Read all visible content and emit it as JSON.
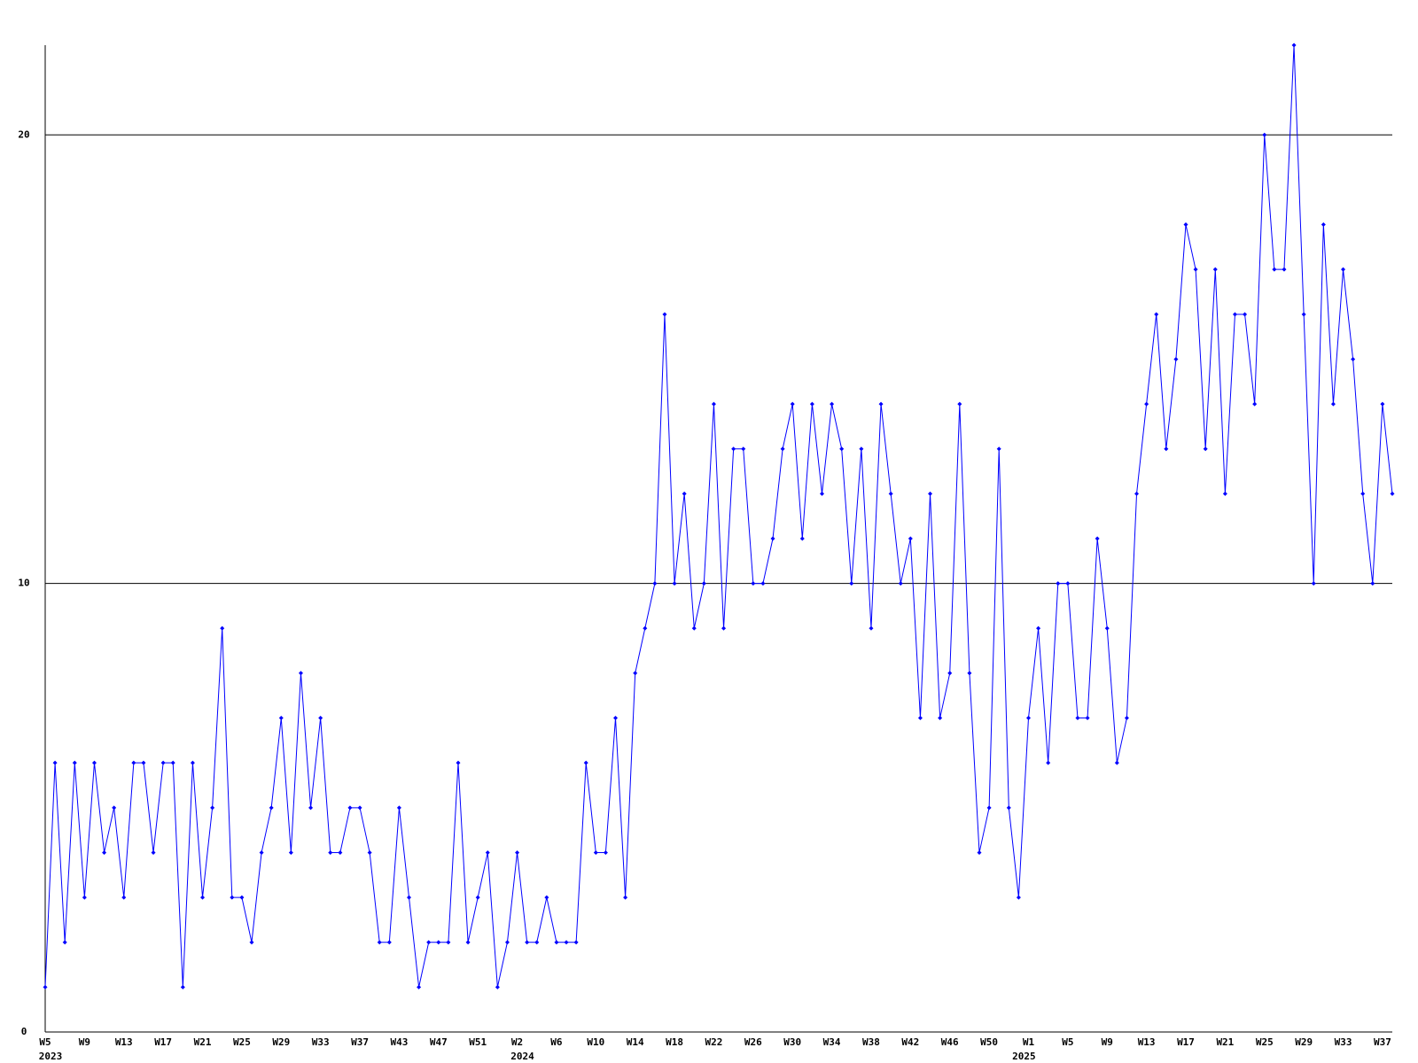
{
  "chart_data": {
    "type": "line",
    "categories": [
      "W5",
      null,
      null,
      null,
      "W9",
      null,
      null,
      null,
      "W13",
      null,
      null,
      null,
      "W17",
      null,
      null,
      null,
      "W21",
      null,
      null,
      null,
      "W25",
      null,
      null,
      null,
      "W29",
      null,
      null,
      null,
      "W33",
      null,
      null,
      null,
      "W37",
      null,
      null,
      null,
      "W43",
      null,
      null,
      null,
      "W47",
      null,
      null,
      null,
      "W51",
      null,
      null,
      null,
      "W2",
      null,
      null,
      null,
      "W6",
      null,
      null,
      null,
      "W10",
      null,
      null,
      null,
      "W14",
      null,
      null,
      null,
      "W18",
      null,
      null,
      null,
      "W22",
      null,
      null,
      null,
      "W26",
      null,
      null,
      null,
      "W30",
      null,
      null,
      null,
      "W34",
      null,
      null,
      null,
      "W38",
      null,
      null,
      null,
      "W42",
      null,
      null,
      null,
      "W46",
      null,
      null,
      null,
      "W50",
      null,
      null,
      null,
      "W1",
      null,
      null,
      null,
      "W5",
      null,
      null,
      null,
      "W9",
      null,
      null,
      null,
      "W13",
      null,
      null,
      null,
      "W17",
      null,
      null,
      null,
      "W21",
      null,
      null,
      null,
      "W25",
      null,
      null,
      null,
      "W29",
      null,
      null,
      null,
      "W33",
      null,
      null,
      null,
      "W37",
      null
    ],
    "years": [
      "2023",
      null,
      null,
      null,
      null,
      null,
      null,
      null,
      null,
      null,
      null,
      null,
      null,
      null,
      null,
      null,
      null,
      null,
      null,
      null,
      null,
      null,
      null,
      null,
      null,
      null,
      null,
      null,
      null,
      null,
      null,
      null,
      null,
      null,
      null,
      null,
      null,
      null,
      null,
      null,
      null,
      null,
      null,
      null,
      null,
      null,
      null,
      null,
      "2024",
      null,
      null,
      null,
      null,
      null,
      null,
      null,
      null,
      null,
      null,
      null,
      null,
      null,
      null,
      null,
      null,
      null,
      null,
      null,
      null,
      null,
      null,
      null,
      null,
      null,
      null,
      null,
      null,
      null,
      null,
      null,
      null,
      null,
      null,
      null,
      null,
      null,
      null,
      null,
      null,
      null,
      null,
      null,
      null,
      null,
      null,
      null,
      null,
      null,
      null,
      "2025",
      null,
      null,
      null,
      null,
      null,
      null,
      null,
      null,
      null,
      null,
      null,
      null,
      null,
      null,
      null,
      null,
      null,
      null,
      null,
      null,
      null,
      null,
      null,
      null,
      null,
      null,
      null,
      null,
      null,
      null,
      null,
      null,
      null,
      null,
      null,
      null
    ],
    "values": [
      1,
      6,
      2,
      6,
      3,
      6,
      4,
      5,
      3,
      6,
      6,
      4,
      6,
      6,
      1,
      6,
      3,
      5,
      9,
      3,
      3,
      2,
      4,
      5,
      7,
      4,
      8,
      5,
      7,
      4,
      4,
      5,
      5,
      4,
      2,
      2,
      5,
      3,
      1,
      2,
      2,
      2,
      6,
      2,
      3,
      4,
      1,
      2,
      4,
      2,
      2,
      3,
      2,
      2,
      2,
      6,
      4,
      4,
      7,
      3,
      8,
      9,
      10,
      16,
      10,
      12,
      9,
      10,
      14,
      9,
      13,
      13,
      10,
      10,
      11,
      13,
      14,
      11,
      14,
      12,
      14,
      13,
      10,
      13,
      9,
      14,
      12,
      10,
      11,
      7,
      12,
      7,
      8,
      14,
      8,
      4,
      5,
      13,
      5,
      3,
      7,
      9,
      6,
      10,
      10,
      7,
      7,
      11,
      9,
      6,
      7,
      12,
      14,
      16,
      13,
      15,
      18,
      17,
      13,
      17,
      12,
      16,
      16,
      14,
      20,
      17,
      17,
      22,
      16,
      10,
      18,
      14,
      17,
      15,
      12,
      10,
      14,
      12
    ],
    "color": "#0000ff",
    "ylim": [
      0,
      22
    ],
    "yticks": [
      0,
      10,
      20
    ],
    "grid": true
  }
}
